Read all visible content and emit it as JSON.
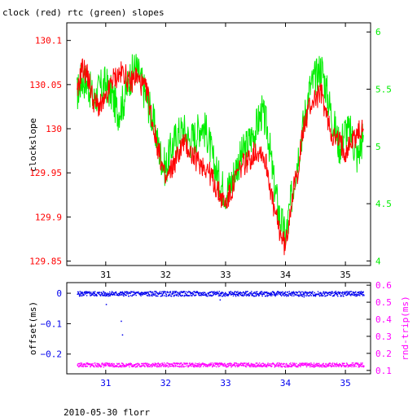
{
  "title": "clock (red) rtc (green) slopes",
  "footer": "2010-05-30 florr",
  "chart_data": [
    {
      "type": "line",
      "title": "clock (red) rtc (green) slopes",
      "xlabel": "",
      "ylabel": "clockslope",
      "xlim": [
        30.35,
        35.42
      ],
      "xticks": [
        31,
        32,
        33,
        34,
        35
      ],
      "left_axis": {
        "ylim": [
          129.845,
          130.12
        ],
        "ticks": [
          130.1,
          130.05,
          130,
          129.95,
          129.9,
          129.85
        ],
        "tick_labels": [
          "130.1",
          "130.05",
          "130",
          "129.95",
          "129.9",
          "129.85"
        ],
        "color": "#ff0000"
      },
      "right_axis": {
        "ylim": [
          3.96,
          6.08
        ],
        "ticks": [
          6,
          5.5,
          5,
          4.5,
          4
        ],
        "tick_labels": [
          "6",
          "5.5",
          "5",
          "4.5",
          "4"
        ],
        "color": "#00ee00"
      },
      "series": [
        {
          "name": "clock",
          "axis": "left",
          "color": "#ff0000",
          "x": [
            30.52,
            30.6,
            30.7,
            30.8,
            30.9,
            31.0,
            31.1,
            31.2,
            31.3,
            31.4,
            31.5,
            31.6,
            31.7,
            31.8,
            31.9,
            32.0,
            32.1,
            32.2,
            32.3,
            32.4,
            32.5,
            32.6,
            32.7,
            32.8,
            32.9,
            33.0,
            33.1,
            33.2,
            33.3,
            33.4,
            33.5,
            33.6,
            33.7,
            33.8,
            33.9,
            34.0,
            34.1,
            34.2,
            34.3,
            34.4,
            34.5,
            34.6,
            34.7,
            34.8,
            34.9,
            35.0,
            35.1,
            35.2,
            35.3
          ],
          "y": [
            130.035,
            130.07,
            130.06,
            130.03,
            130.025,
            130.03,
            130.055,
            130.06,
            130.065,
            130.05,
            130.06,
            130.05,
            130.04,
            130.0,
            129.97,
            129.94,
            129.955,
            129.97,
            129.985,
            129.975,
            129.965,
            129.96,
            129.955,
            129.94,
            129.925,
            129.915,
            129.93,
            129.95,
            129.96,
            129.965,
            129.975,
            129.975,
            129.955,
            129.91,
            129.885,
            129.865,
            129.92,
            129.95,
            130.0,
            130.025,
            130.035,
            130.04,
            130.01,
            129.99,
            129.985,
            129.975,
            129.985,
            129.995,
            130.0
          ]
        },
        {
          "name": "rtc",
          "axis": "right",
          "color": "#00ee00",
          "x": [
            30.52,
            30.6,
            30.7,
            30.8,
            30.9,
            31.0,
            31.1,
            31.2,
            31.3,
            31.4,
            31.5,
            31.6,
            31.7,
            31.8,
            31.9,
            32.0,
            32.1,
            32.2,
            32.3,
            32.4,
            32.5,
            32.6,
            32.7,
            32.8,
            32.9,
            33.0,
            33.1,
            33.2,
            33.3,
            33.4,
            33.5,
            33.6,
            33.7,
            33.8,
            33.9,
            34.0,
            34.1,
            34.2,
            34.3,
            34.4,
            34.5,
            34.6,
            34.7,
            34.8,
            34.9,
            35.0,
            35.1,
            35.2,
            35.3
          ],
          "y": [
            5.45,
            5.6,
            5.55,
            5.4,
            5.5,
            5.55,
            5.45,
            5.3,
            5.4,
            5.6,
            5.7,
            5.55,
            5.4,
            5.2,
            4.95,
            4.8,
            5.0,
            5.1,
            5.15,
            5.05,
            5.1,
            5.2,
            5.1,
            4.85,
            4.7,
            4.6,
            4.7,
            4.85,
            4.95,
            5.05,
            5.15,
            5.3,
            5.15,
            4.7,
            4.4,
            4.2,
            4.55,
            4.9,
            5.2,
            5.5,
            5.6,
            5.7,
            5.45,
            5.2,
            5.0,
            5.15,
            5.1,
            4.9,
            5.1
          ]
        }
      ]
    },
    {
      "type": "scatter",
      "title": "",
      "xlabel": "",
      "ylabel": "offset(ms)",
      "right_ylabel": "rnd-trip(ms)",
      "xlim": [
        30.35,
        35.42
      ],
      "xticks": [
        31,
        32,
        33,
        34,
        35
      ],
      "left_axis": {
        "ylim": [
          -0.265,
          0.035
        ],
        "ticks": [
          0,
          -0.1,
          -0.2
        ],
        "tick_labels": [
          "0",
          "−0.1",
          "−0.2"
        ],
        "color": "#0000ee"
      },
      "right_axis": {
        "ylim": [
          0.08,
          0.615
        ],
        "ticks": [
          0.6,
          0.5,
          0.4,
          0.3,
          0.2,
          0.1
        ],
        "tick_labels": [
          "0.6",
          "0.5",
          "0.4",
          "0.3",
          "0.2",
          "0.1"
        ],
        "color": "#ff00ff"
      },
      "series": [
        {
          "name": "offset",
          "axis": "left",
          "color": "#0000ee",
          "x_range": [
            30.52,
            35.3
          ],
          "level": 0.0,
          "spread": 0.008
        },
        {
          "name": "rnd-trip",
          "axis": "right",
          "color": "#ff00ff",
          "x_range": [
            30.52,
            35.3
          ],
          "level": 0.135,
          "spread": 0.012
        }
      ],
      "outliers": [
        {
          "series": "offset",
          "x": [
            31.25,
            31.27,
            31.0,
            32.9,
            34.3
          ],
          "y": [
            -0.09,
            -0.135,
            -0.035,
            -0.02,
            -0.01
          ]
        }
      ]
    }
  ]
}
